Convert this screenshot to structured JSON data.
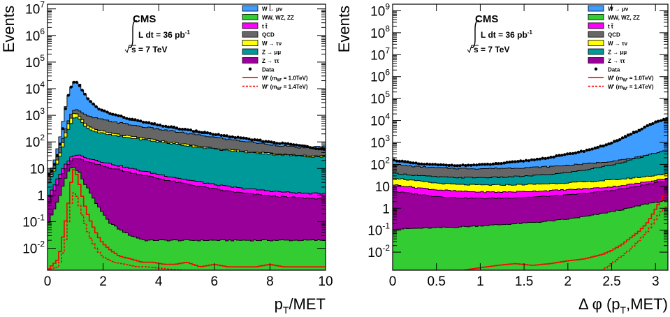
{
  "chart_data": [
    {
      "type": "area",
      "title": "",
      "ylabel": "Events",
      "xlabel": "p_T/MET",
      "xlabel_main": "p",
      "xlabel_sub": "T",
      "xlabel_rest": "/MET",
      "xlim": [
        0,
        10
      ],
      "ylim": [
        0.0015,
        15000000.0
      ],
      "log_y": true,
      "x_ticks": [
        0,
        2,
        4,
        6,
        8,
        10
      ],
      "x_tick_labels": [
        "0",
        "2",
        "4",
        "6",
        "8",
        "10"
      ],
      "y_tick_labels": [
        {
          "v": 10000000.0,
          "m": "10",
          "e": "7"
        },
        {
          "v": 1000000.0,
          "m": "10",
          "e": "6"
        },
        {
          "v": 100000.0,
          "m": "10",
          "e": "5"
        },
        {
          "v": 10000.0,
          "m": "10",
          "e": "4"
        },
        {
          "v": 1000.0,
          "m": "10",
          "e": "3"
        },
        {
          "v": 100.0,
          "m": "10",
          "e": "2"
        },
        {
          "v": 10,
          "m": "10",
          "e": ""
        },
        {
          "v": 1,
          "m": "1",
          "e": ""
        },
        {
          "v": 0.1,
          "m": "10",
          "e": "-1"
        },
        {
          "v": 0.01,
          "m": "10",
          "e": "-2"
        }
      ],
      "legend_position": "top-right",
      "stack_order": [
        "WW, WZ, ZZ",
        "Z → ττ",
        "t t̄",
        "Z → μμ",
        "W → τν",
        "QCD",
        "W → μν"
      ],
      "x": [
        0.05,
        0.25,
        0.45,
        0.6,
        0.75,
        0.9,
        1.0,
        1.15,
        1.3,
        1.5,
        1.8,
        2.2,
        2.6,
        3.0,
        3.5,
        4.0,
        4.5,
        5.0,
        5.5,
        6.0,
        6.5,
        7.0,
        7.5,
        8.0,
        8.5,
        9.0,
        9.5,
        9.95
      ],
      "cumulative": [
        {
          "name": "WW, WZ, ZZ",
          "values": [
            0.1,
            0.3,
            1.0,
            3.0,
            8.0,
            12.0,
            10.0,
            7.0,
            3.0,
            1.5,
            0.4,
            0.1,
            0.05,
            0.03,
            0.02,
            0.02,
            0.02,
            0.02,
            0.02,
            0.02,
            0.02,
            0.02,
            0.02,
            0.02,
            0.02,
            0.02,
            0.02,
            0.02
          ]
        },
        {
          "name": "Z → ττ",
          "values": [
            0.6,
            1.5,
            4.0,
            8.0,
            14.0,
            22.0,
            24.0,
            22.0,
            20.0,
            17.0,
            14.0,
            11.0,
            9.0,
            7.0,
            5.5,
            4.2,
            3.3,
            2.6,
            2.1,
            1.7,
            1.4,
            1.2,
            1.05,
            0.95,
            0.85,
            0.8,
            0.75,
            0.75
          ]
        },
        {
          "name": "t t̄",
          "values": [
            1.0,
            2.5,
            6.0,
            12.0,
            20.0,
            30.0,
            33.0,
            31.0,
            28.0,
            24.0,
            20.0,
            15.5,
            12.5,
            10.0,
            7.8,
            6.0,
            4.8,
            3.8,
            3.1,
            2.5,
            2.1,
            1.8,
            1.6,
            1.45,
            1.3,
            1.2,
            1.15,
            1.15
          ]
        },
        {
          "name": "Z → μμ",
          "values": [
            3.0,
            8.0,
            30.0,
            100.0,
            300.0,
            700.0,
            900.0,
            700.0,
            450.0,
            300.0,
            230.0,
            185.0,
            160.0,
            140.0,
            120.0,
            100.0,
            85.0,
            72.0,
            62.0,
            54.0,
            47.0,
            42.0,
            38.0,
            35.0,
            32.0,
            30.0,
            28.0,
            28.0
          ]
        },
        {
          "name": "W → τν",
          "values": [
            3.5,
            10.0,
            40.0,
            150.0,
            450.0,
            1000.0,
            1200.0,
            900.0,
            560.0,
            370.0,
            280.0,
            220.0,
            185.0,
            160.0,
            135.0,
            112.0,
            95.0,
            80.0,
            68.0,
            59.0,
            51.0,
            45.0,
            41.0,
            37.0,
            34.0,
            32.0,
            30.0,
            30.0
          ]
        },
        {
          "name": "QCD",
          "values": [
            5.0,
            14.0,
            60.0,
            220.0,
            650.0,
            1400.0,
            1700.0,
            1400.0,
            1100.0,
            900.0,
            750.0,
            620.0,
            520.0,
            440.0,
            360.0,
            300.0,
            250.0,
            210.0,
            175.0,
            150.0,
            125.0,
            108.0,
            92.0,
            80.0,
            70.0,
            62.0,
            56.0,
            56.0
          ]
        },
        {
          "name": "W → μν",
          "values": [
            6.0,
            20.0,
            150.0,
            1200.0,
            6000.0,
            15000.0,
            20000.0,
            14000.0,
            7000.0,
            3500.0,
            1800.0,
            1200.0,
            900.0,
            700.0,
            530.0,
            420.0,
            340.0,
            280.0,
            230.0,
            190.0,
            160.0,
            135.0,
            115.0,
            98.0,
            85.0,
            75.0,
            68.0,
            68.0
          ]
        }
      ],
      "data_points": {
        "name": "Data",
        "x": [
          0.1,
          0.3,
          0.5,
          0.7,
          0.9,
          1.0,
          1.1,
          1.3,
          1.5,
          1.8,
          2.2,
          2.6,
          3.0,
          3.5,
          4.0,
          4.5,
          5.0,
          5.5,
          6.0,
          6.5,
          7.0,
          7.5,
          8.0,
          8.5,
          9.0,
          9.5,
          9.9
        ],
        "y": [
          6,
          18,
          140,
          4000,
          16000,
          21000,
          15000,
          7200,
          3600,
          1850,
          1230,
          920,
          720,
          545,
          430,
          350,
          285,
          235,
          195,
          162,
          137,
          117,
          100,
          86,
          76,
          60,
          55
        ]
      },
      "signals": [
        {
          "name": "W' (m_W' = 1.0TeV)",
          "style": "solid",
          "x": [
            0.0,
            0.4,
            0.6,
            0.75,
            0.85,
            0.95,
            1.05,
            1.15,
            1.25,
            1.4,
            1.6,
            1.8,
            2.0,
            2.3,
            2.6,
            3.0,
            3.4,
            3.8,
            4.2,
            4.6,
            5.0,
            5.5,
            6.0,
            6.5,
            7.0,
            7.5,
            8.0,
            8.5,
            9.0,
            9.5,
            10.0
          ],
          "y": [
            0.0015,
            0.004,
            0.05,
            0.5,
            3.0,
            9.0,
            6.0,
            2.5,
            0.9,
            0.25,
            0.08,
            0.03,
            0.015,
            0.008,
            0.005,
            0.004,
            0.003,
            0.003,
            0.0025,
            0.0025,
            0.003,
            0.002,
            0.0025,
            0.002,
            0.002,
            0.002,
            0.0025,
            0.002,
            0.002,
            0.002,
            0.002
          ]
        },
        {
          "name": "W' (m_W' = 1.4TeV)",
          "style": "dashed",
          "x": [
            0.0,
            0.4,
            0.6,
            0.75,
            0.85,
            0.95,
            1.05,
            1.15,
            1.3,
            1.5,
            1.7,
            1.9,
            2.1,
            2.4,
            2.8,
            3.2,
            3.6,
            4.0,
            4.5,
            5.0
          ],
          "y": [
            0.0015,
            0.002,
            0.01,
            0.1,
            0.5,
            1.2,
            0.9,
            0.4,
            0.12,
            0.03,
            0.012,
            0.006,
            0.004,
            0.003,
            0.0025,
            0.002,
            0.002,
            0.0018,
            0.0016,
            0.0015
          ]
        }
      ],
      "annotations": [
        "CMS",
        "L dt = 36 pb",
        "-1",
        "s = 7 TeV"
      ]
    },
    {
      "type": "area",
      "title": "",
      "ylabel": "Events",
      "xlabel": "Δ φ (p_T,MET)",
      "xlabel_main": "Δ φ (p",
      "xlabel_sub": "T",
      "xlabel_rest": ",MET)",
      "xlim": [
        0,
        3.1416
      ],
      "ylim": [
        0.0015,
        2000000000.0
      ],
      "log_y": true,
      "x_ticks": [
        0,
        0.5,
        1,
        1.5,
        2,
        2.5,
        3
      ],
      "x_tick_labels": [
        "0",
        "0.5",
        "1",
        "1.5",
        "2",
        "2.5",
        "3"
      ],
      "y_tick_labels": [
        {
          "v": 1000000000.0,
          "m": "10",
          "e": "9"
        },
        {
          "v": 100000000.0,
          "m": "10",
          "e": "8"
        },
        {
          "v": 10000000.0,
          "m": "10",
          "e": "7"
        },
        {
          "v": 1000000.0,
          "m": "10",
          "e": "6"
        },
        {
          "v": 100000.0,
          "m": "10",
          "e": "5"
        },
        {
          "v": 10000.0,
          "m": "10",
          "e": "4"
        },
        {
          "v": 1000.0,
          "m": "10",
          "e": "3"
        },
        {
          "v": 100.0,
          "m": "10",
          "e": "2"
        },
        {
          "v": 10,
          "m": "10",
          "e": ""
        },
        {
          "v": 1,
          "m": "1",
          "e": ""
        },
        {
          "v": 0.1,
          "m": "10",
          "e": "-1"
        },
        {
          "v": 0.01,
          "m": "10",
          "e": "-2"
        }
      ],
      "legend_position": "top-right",
      "stack_order": [
        "WW, WZ, ZZ",
        "Z → ττ",
        "t t̄",
        "W → τν",
        "Z → μμ",
        "QCD",
        "W → μν"
      ],
      "x": [
        0.0,
        0.25,
        0.5,
        0.75,
        1.0,
        1.25,
        1.5,
        1.75,
        2.0,
        2.25,
        2.5,
        2.7,
        2.9,
        3.05,
        3.1416
      ],
      "cumulative": [
        {
          "name": "WW, WZ, ZZ",
          "values": [
            0.11,
            0.12,
            0.13,
            0.14,
            0.16,
            0.18,
            0.21,
            0.25,
            0.32,
            0.45,
            0.7,
            1.0,
            1.6,
            2.0,
            2.2
          ]
        },
        {
          "name": "Z → ττ",
          "values": [
            6.0,
            4.5,
            3.5,
            3.0,
            2.8,
            2.9,
            3.1,
            3.5,
            4.0,
            5.0,
            6.5,
            8.5,
            12.0,
            16.0,
            18.0
          ]
        },
        {
          "name": "t t̄",
          "values": [
            12.0,
            9.0,
            7.0,
            6.0,
            5.5,
            5.5,
            5.8,
            6.3,
            7.0,
            8.0,
            9.5,
            12.0,
            16.0,
            21.0,
            23.0
          ]
        },
        {
          "name": "W → τν",
          "values": [
            25.0,
            18.0,
            14.0,
            12.0,
            11.5,
            11.5,
            12.0,
            13.0,
            14.5,
            16.5,
            19.5,
            23.0,
            28.0,
            34.0,
            36.0
          ]
        },
        {
          "name": "Z → μμ",
          "values": [
            40.0,
            32.0,
            27.0,
            25.0,
            25.0,
            26.0,
            29.0,
            34.0,
            42.0,
            60.0,
            95.0,
            150.0,
            250.0,
            380.0,
            420.0
          ]
        },
        {
          "name": "QCD",
          "values": [
            100.0,
            80.0,
            70.0,
            65.0,
            64.0,
            66.0,
            70.0,
            78.0,
            90.0,
            110.0,
            140.0,
            180.0,
            250.0,
            330.0,
            360.0
          ]
        },
        {
          "name": "W → μν",
          "values": [
            150.0,
            110.0,
            95.0,
            90.0,
            95.0,
            110.0,
            140.0,
            190.0,
            280.0,
            450.0,
            900.0,
            2000.0,
            5000.0,
            10000.0,
            11000.0
          ]
        }
      ],
      "data_points": {
        "name": "Data",
        "x": [
          0.02,
          0.1,
          0.2,
          0.3,
          0.45,
          0.6,
          0.8,
          1.0,
          1.2,
          1.4,
          1.6,
          1.8,
          2.0,
          2.2,
          2.4,
          2.6,
          2.8,
          2.95,
          3.05,
          3.12
        ],
        "y": [
          155,
          140,
          120,
          105,
          98,
          92,
          90,
          95,
          108,
          130,
          160,
          210,
          290,
          420,
          700,
          1400,
          3500,
          7000,
          10000,
          12000
        ]
      },
      "signals": [
        {
          "name": "W' (m_W' = 1.0TeV)",
          "style": "solid",
          "x": [
            0.0,
            0.4,
            0.8,
            1.2,
            1.4,
            1.6,
            1.8,
            2.0,
            2.2,
            2.4,
            2.5,
            2.6,
            2.7,
            2.8,
            2.9,
            2.95,
            3.0,
            3.05,
            3.1,
            3.1416
          ],
          "y": [
            0.0015,
            0.0015,
            0.0015,
            0.0025,
            0.003,
            0.0025,
            0.003,
            0.004,
            0.005,
            0.008,
            0.012,
            0.02,
            0.04,
            0.08,
            0.2,
            0.4,
            0.9,
            2.0,
            4.0,
            5.0
          ]
        },
        {
          "name": "W' (m_W' = 1.4TeV)",
          "style": "dashed",
          "x": [
            2.4,
            2.5,
            2.6,
            2.7,
            2.8,
            2.9,
            2.95,
            3.0,
            3.05,
            3.1,
            3.1416
          ],
          "y": [
            0.0015,
            0.003,
            0.006,
            0.012,
            0.03,
            0.08,
            0.15,
            0.3,
            0.6,
            1.0,
            1.2
          ]
        }
      ],
      "annotations": [
        "CMS",
        "L dt = 36 pb",
        "-1",
        "s = 7 TeV"
      ]
    }
  ],
  "legend": {
    "items": [
      {
        "key": "wmunu",
        "label": "W → μν",
        "kind": "fill",
        "color": "#3f9dff"
      },
      {
        "key": "diboson",
        "label": "WW, WZ, ZZ",
        "kind": "fill",
        "color": "#33cc33"
      },
      {
        "key": "ttbar",
        "label": "t t̄",
        "kind": "fill",
        "color": "#ff00ff"
      },
      {
        "key": "qcd",
        "label": "QCD",
        "kind": "fill",
        "color": "#666666"
      },
      {
        "key": "wtaunu",
        "label": "W → τν",
        "kind": "fill",
        "color": "#ffff00"
      },
      {
        "key": "zmumu",
        "label": "Z → μμ",
        "kind": "fill",
        "color": "#009999"
      },
      {
        "key": "ztautau",
        "label": "Z → ττ",
        "kind": "fill",
        "color": "#990099"
      },
      {
        "key": "data",
        "label": "Data",
        "kind": "marker",
        "color": "#000000"
      },
      {
        "key": "wp10",
        "label": "W' (m",
        "label_sub": "W'",
        "label_tail": " = 1.0TeV)",
        "kind": "line",
        "color": "#ff0000"
      },
      {
        "key": "wp14",
        "label": "W' (m",
        "label_sub": "W'",
        "label_tail": " = 1.4TeV)",
        "kind": "dashed",
        "color": "#ff0000"
      }
    ]
  },
  "colors": {
    "W → μν": "#3f9dff",
    "WW, WZ, ZZ": "#33cc33",
    "t t̄": "#ff00ff",
    "QCD": "#666666",
    "W → τν": "#ffff00",
    "Z → μμ": "#009999",
    "Z → ττ": "#990099",
    "signal": "#ff0000"
  }
}
